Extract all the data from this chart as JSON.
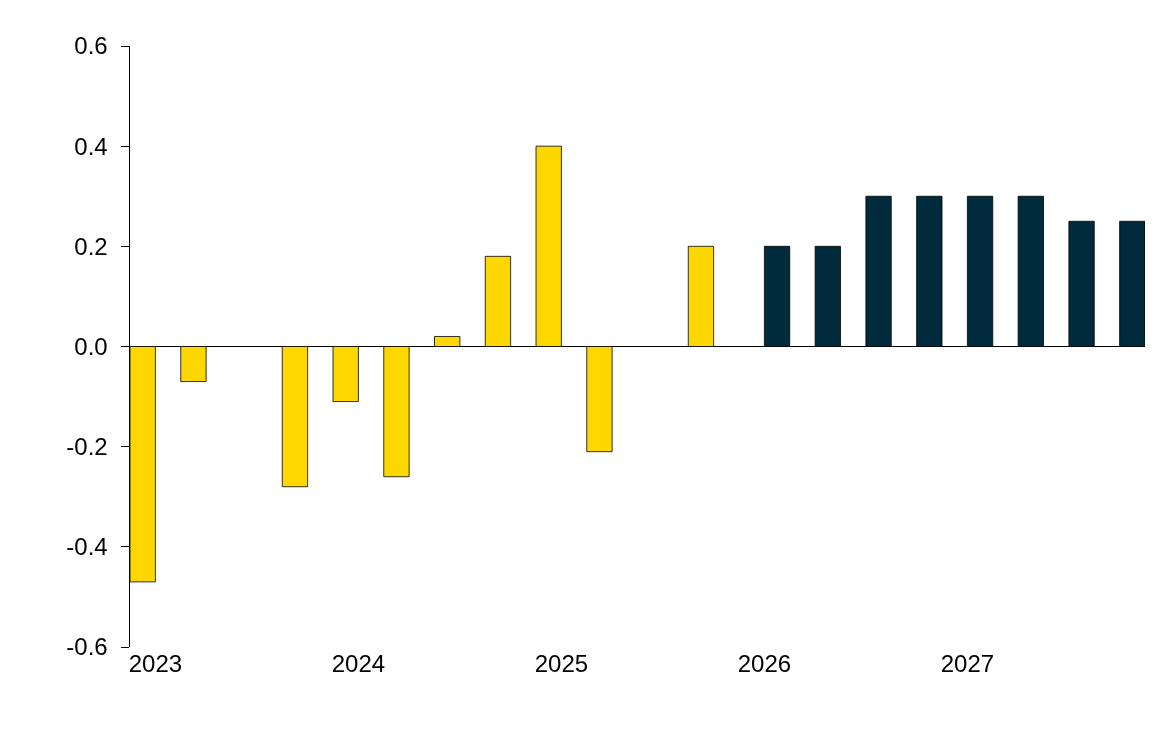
{
  "chart_data": {
    "type": "bar",
    "categories": [
      "2023",
      null,
      null,
      null,
      "2024",
      null,
      null,
      null,
      "2025",
      null,
      null,
      null,
      "2026",
      null,
      null,
      null,
      "2027",
      null,
      null,
      null
    ],
    "series": [
      {
        "color": "#ffd700",
        "values": [
          -0.47,
          -0.07,
          null,
          -0.28,
          -0.11,
          -0.26,
          0.02,
          0.18,
          0.4,
          -0.21,
          null,
          0.2,
          null,
          null,
          null,
          null,
          null,
          null,
          null,
          null
        ]
      },
      {
        "color": "#002b3d",
        "values": [
          null,
          null,
          null,
          null,
          null,
          null,
          null,
          null,
          null,
          null,
          null,
          null,
          0.2,
          0.2,
          0.3,
          0.3,
          0.3,
          0.3,
          0.25,
          0.25
        ]
      }
    ],
    "ylim": [
      -0.6,
      0.6
    ],
    "yticks": [
      {
        "value": -0.6,
        "label": "-0.6"
      },
      {
        "value": -0.4,
        "label": "-0.4"
      },
      {
        "value": -0.2,
        "label": "-0.2"
      },
      {
        "value": 0,
        "label": "0.0"
      },
      {
        "value": 0.2,
        "label": "0.2"
      },
      {
        "value": 0.4,
        "label": "0.4"
      },
      {
        "value": 0.6,
        "label": "0.6"
      }
    ]
  }
}
